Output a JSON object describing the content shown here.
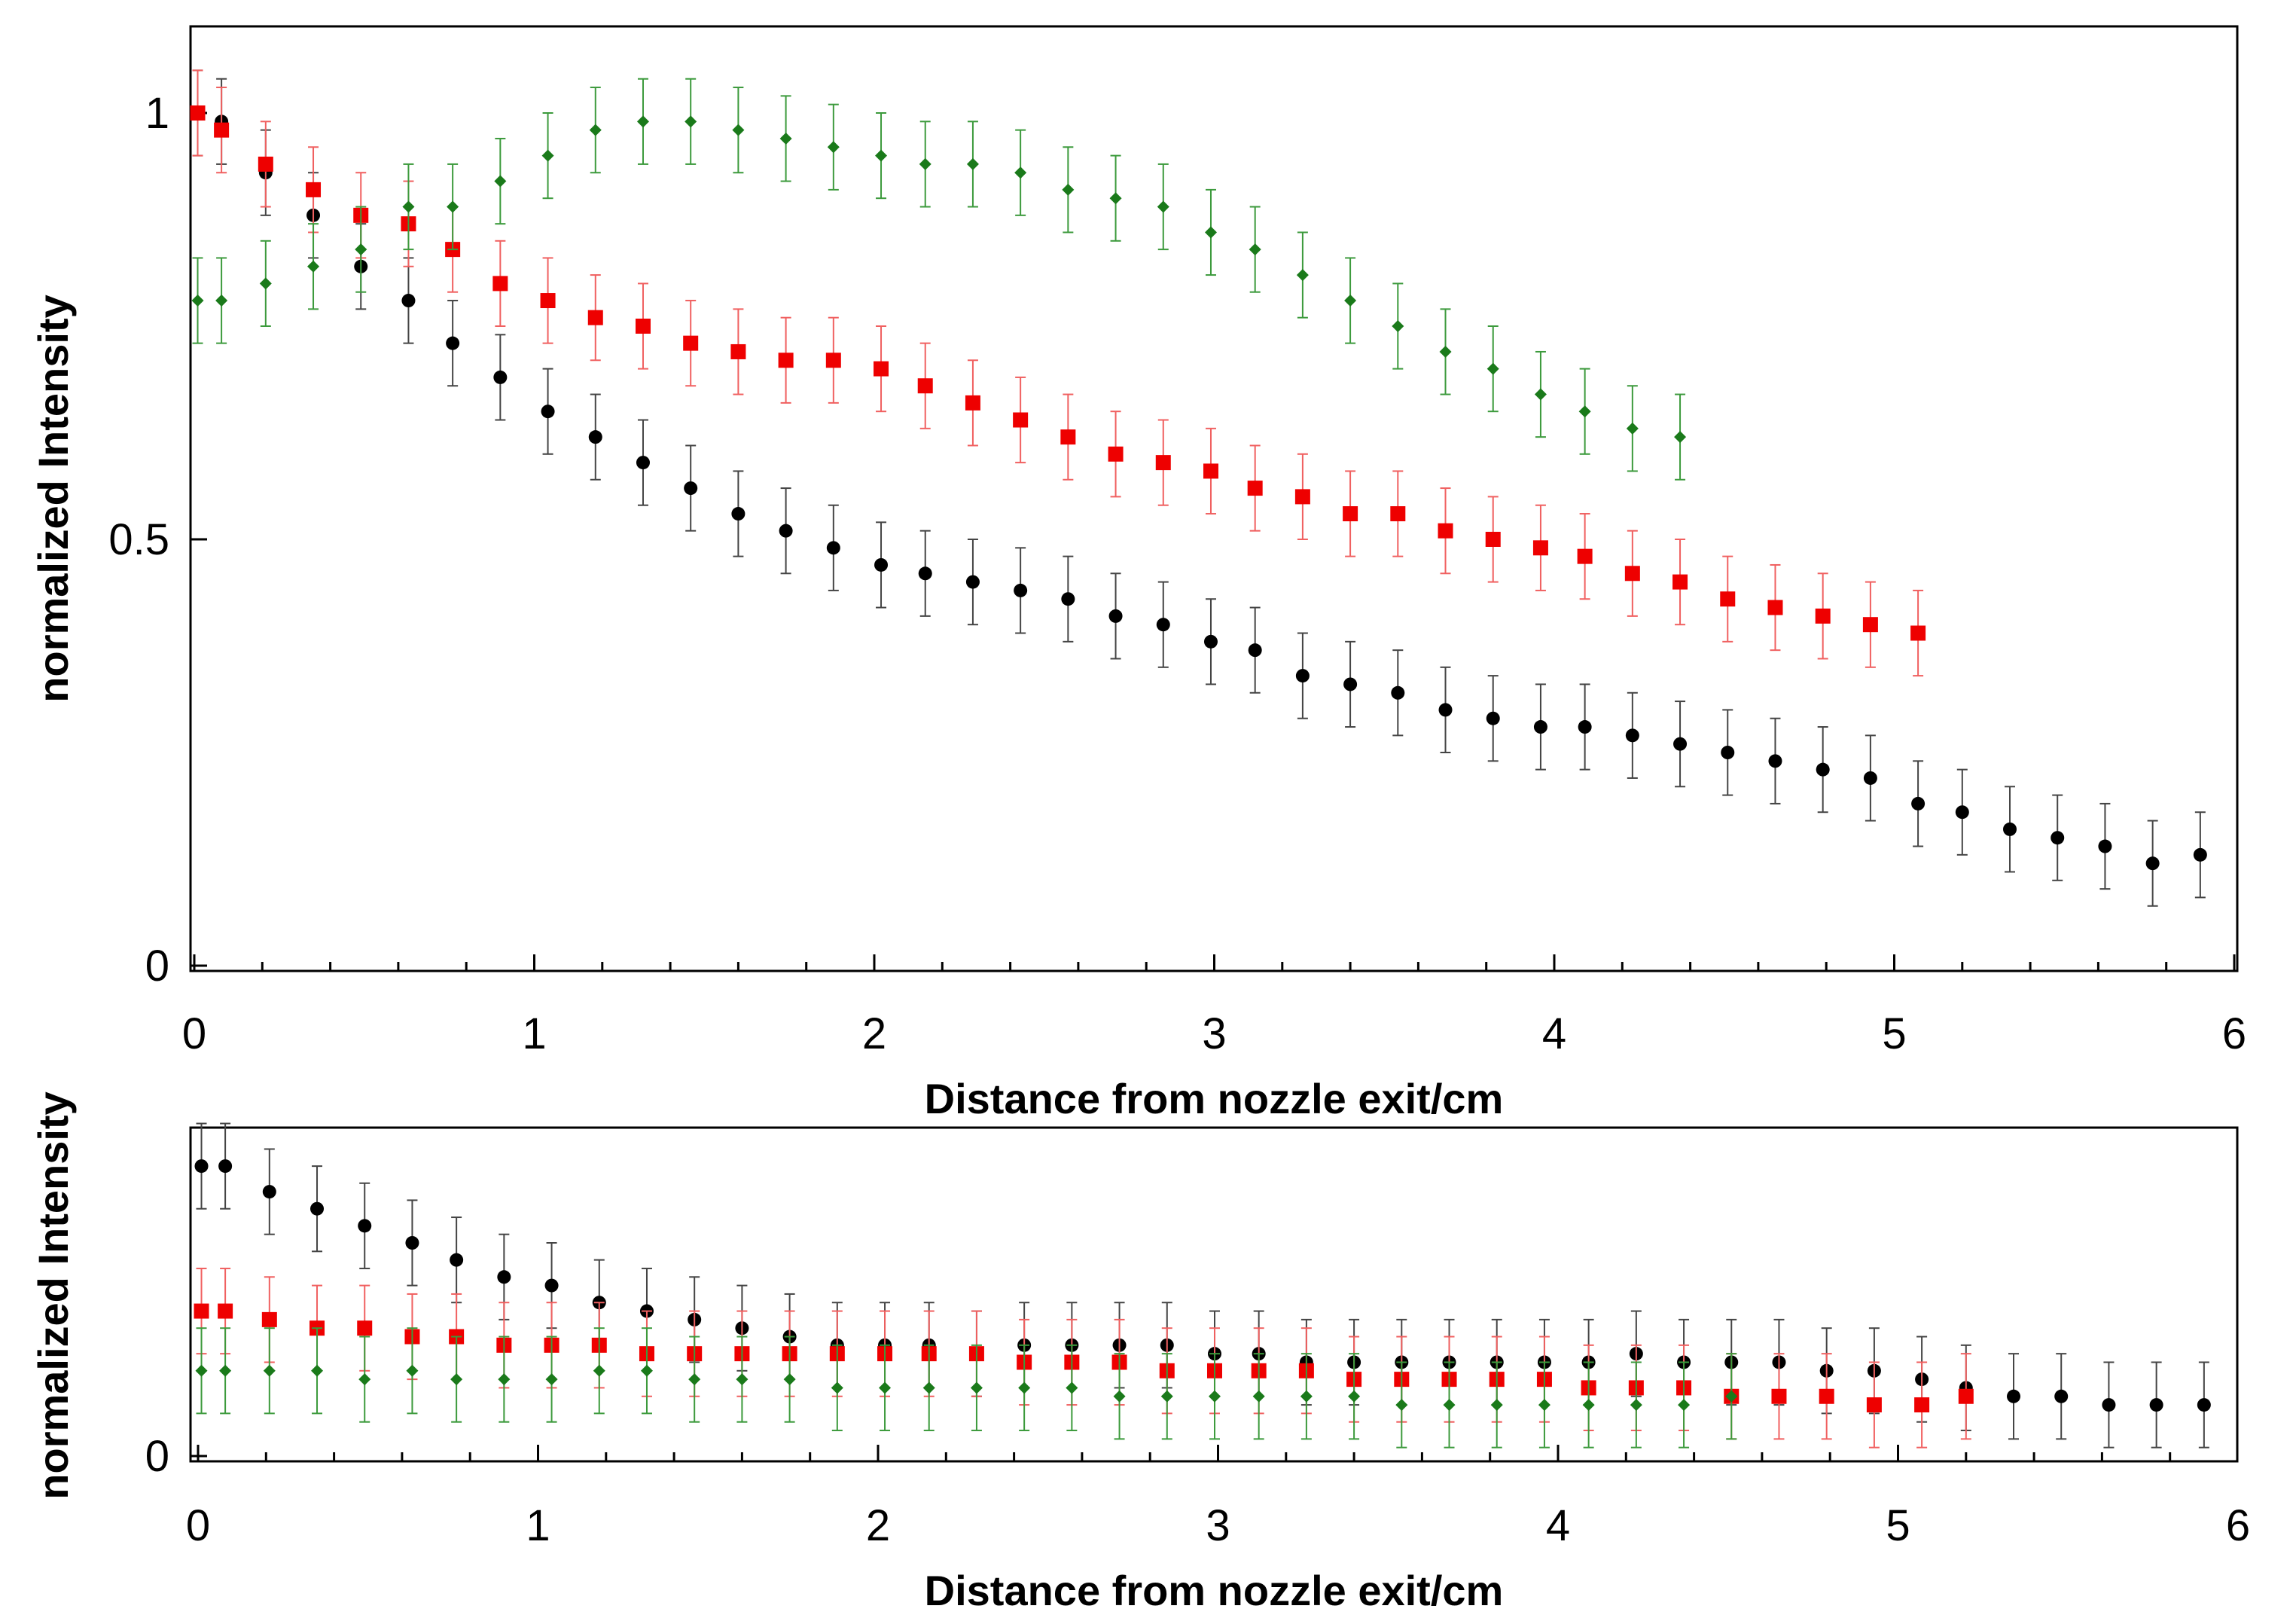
{
  "chart_data": [
    {
      "type": "scatter",
      "panel": "top",
      "title": "",
      "xlabel": "Distance from nozzle exit/cm",
      "ylabel": "normalized Intensity",
      "xlim": [
        0,
        6.1
      ],
      "ylim": [
        0,
        1.1
      ],
      "xticks": [
        0,
        1,
        2,
        3,
        4,
        5,
        6
      ],
      "yticks": [
        0,
        0.5,
        1
      ],
      "x_tick_labels": [
        "0",
        "1",
        "2",
        "3",
        "4",
        "5",
        "6"
      ],
      "y_tick_labels": [
        "0",
        "0.5",
        "1"
      ],
      "grid": false,
      "series": [
        {
          "name": "black",
          "color": "#000000",
          "marker": "circle",
          "error": 0.05,
          "x": [
            0.01,
            0.08,
            0.21,
            0.35,
            0.49,
            0.63,
            0.76,
            0.9,
            1.04,
            1.18,
            1.32,
            1.46,
            1.6,
            1.74,
            1.88,
            2.02,
            2.15,
            2.29,
            2.43,
            2.57,
            2.71,
            2.85,
            2.99,
            3.12,
            3.26,
            3.4,
            3.54,
            3.68,
            3.82,
            3.96,
            4.09,
            4.23,
            4.37,
            4.51,
            4.65,
            4.79,
            4.93,
            5.07,
            5.2,
            5.34,
            5.48,
            5.62,
            5.76,
            5.9
          ],
          "y": [
            1.0,
            0.99,
            0.93,
            0.88,
            0.82,
            0.78,
            0.73,
            0.69,
            0.65,
            0.62,
            0.59,
            0.56,
            0.53,
            0.51,
            0.49,
            0.47,
            0.46,
            0.45,
            0.44,
            0.43,
            0.41,
            0.4,
            0.38,
            0.37,
            0.34,
            0.33,
            0.32,
            0.3,
            0.29,
            0.28,
            0.28,
            0.27,
            0.26,
            0.25,
            0.24,
            0.23,
            0.22,
            0.19,
            0.18,
            0.16,
            0.15,
            0.14,
            0.12,
            0.13
          ]
        },
        {
          "name": "red",
          "color": "#ee0000",
          "marker": "square",
          "error": 0.05,
          "x": [
            0.01,
            0.08,
            0.21,
            0.35,
            0.49,
            0.63,
            0.76,
            0.9,
            1.04,
            1.18,
            1.32,
            1.46,
            1.6,
            1.74,
            1.88,
            2.02,
            2.15,
            2.29,
            2.43,
            2.57,
            2.71,
            2.85,
            2.99,
            3.12,
            3.26,
            3.4,
            3.54,
            3.68,
            3.82,
            3.96,
            4.09,
            4.23,
            4.37,
            4.51,
            4.65,
            4.79,
            4.93,
            5.07
          ],
          "y": [
            1.0,
            0.98,
            0.94,
            0.91,
            0.88,
            0.87,
            0.84,
            0.8,
            0.78,
            0.76,
            0.75,
            0.73,
            0.72,
            0.71,
            0.71,
            0.7,
            0.68,
            0.66,
            0.64,
            0.62,
            0.6,
            0.59,
            0.58,
            0.56,
            0.55,
            0.53,
            0.53,
            0.51,
            0.5,
            0.49,
            0.48,
            0.46,
            0.45,
            0.43,
            0.42,
            0.41,
            0.4,
            0.39
          ]
        },
        {
          "name": "green",
          "color": "#1a7a1a",
          "marker": "diamond",
          "error": 0.05,
          "x": [
            0.01,
            0.08,
            0.21,
            0.35,
            0.49,
            0.63,
            0.76,
            0.9,
            1.04,
            1.18,
            1.32,
            1.46,
            1.6,
            1.74,
            1.88,
            2.02,
            2.15,
            2.29,
            2.43,
            2.57,
            2.71,
            2.85,
            2.99,
            3.12,
            3.26,
            3.4,
            3.54,
            3.68,
            3.82,
            3.96,
            4.09,
            4.23,
            4.37
          ],
          "y": [
            0.78,
            0.78,
            0.8,
            0.82,
            0.84,
            0.89,
            0.89,
            0.92,
            0.95,
            0.98,
            0.99,
            0.99,
            0.98,
            0.97,
            0.96,
            0.95,
            0.94,
            0.94,
            0.93,
            0.91,
            0.9,
            0.89,
            0.86,
            0.84,
            0.81,
            0.78,
            0.75,
            0.72,
            0.7,
            0.67,
            0.65,
            0.63,
            0.62
          ]
        }
      ]
    },
    {
      "type": "scatter",
      "panel": "bottom",
      "title": "",
      "xlabel": "Distance from nozzle exit/cm",
      "ylabel": "normalized Intensity",
      "xlim": [
        0,
        6.1
      ],
      "ylim": [
        0,
        0.39
      ],
      "xticks": [
        0,
        1,
        2,
        3,
        4,
        5,
        6
      ],
      "yticks": [
        0
      ],
      "x_tick_labels": [
        "0",
        "1",
        "2",
        "3",
        "4",
        "5",
        "6"
      ],
      "y_tick_labels": [
        "0"
      ],
      "grid": false,
      "series": [
        {
          "name": "black",
          "color": "#000000",
          "marker": "circle",
          "error": 0.05,
          "x": [
            0.01,
            0.08,
            0.21,
            0.35,
            0.49,
            0.63,
            0.76,
            0.9,
            1.04,
            1.18,
            1.32,
            1.46,
            1.6,
            1.74,
            1.88,
            2.02,
            2.15,
            2.29,
            2.43,
            2.57,
            2.71,
            2.85,
            2.99,
            3.12,
            3.26,
            3.4,
            3.54,
            3.68,
            3.82,
            3.96,
            4.09,
            4.23,
            4.37,
            4.51,
            4.65,
            4.79,
            4.93,
            5.07,
            5.2,
            5.34,
            5.48,
            5.62,
            5.76,
            5.9
          ],
          "y": [
            0.34,
            0.34,
            0.31,
            0.29,
            0.27,
            0.25,
            0.23,
            0.21,
            0.2,
            0.18,
            0.17,
            0.16,
            0.15,
            0.14,
            0.13,
            0.13,
            0.13,
            0.12,
            0.13,
            0.13,
            0.13,
            0.13,
            0.12,
            0.12,
            0.11,
            0.11,
            0.11,
            0.11,
            0.11,
            0.11,
            0.11,
            0.12,
            0.11,
            0.11,
            0.11,
            0.1,
            0.1,
            0.09,
            0.08,
            0.07,
            0.07,
            0.06,
            0.06,
            0.06
          ]
        },
        {
          "name": "red",
          "color": "#ee0000",
          "marker": "square",
          "error": 0.05,
          "x": [
            0.01,
            0.08,
            0.21,
            0.35,
            0.49,
            0.63,
            0.76,
            0.9,
            1.04,
            1.18,
            1.32,
            1.46,
            1.6,
            1.74,
            1.88,
            2.02,
            2.15,
            2.29,
            2.43,
            2.57,
            2.71,
            2.85,
            2.99,
            3.12,
            3.26,
            3.4,
            3.54,
            3.68,
            3.82,
            3.96,
            4.09,
            4.23,
            4.37,
            4.51,
            4.65,
            4.79,
            4.93,
            5.07,
            5.2
          ],
          "y": [
            0.17,
            0.17,
            0.16,
            0.15,
            0.15,
            0.14,
            0.14,
            0.13,
            0.13,
            0.13,
            0.12,
            0.12,
            0.12,
            0.12,
            0.12,
            0.12,
            0.12,
            0.12,
            0.11,
            0.11,
            0.11,
            0.1,
            0.1,
            0.1,
            0.1,
            0.09,
            0.09,
            0.09,
            0.09,
            0.09,
            0.08,
            0.08,
            0.08,
            0.07,
            0.07,
            0.07,
            0.06,
            0.06,
            0.07
          ]
        },
        {
          "name": "green",
          "color": "#1a7a1a",
          "marker": "diamond",
          "error": 0.05,
          "x": [
            0.01,
            0.08,
            0.21,
            0.35,
            0.49,
            0.63,
            0.76,
            0.9,
            1.04,
            1.18,
            1.32,
            1.46,
            1.6,
            1.74,
            1.88,
            2.02,
            2.15,
            2.29,
            2.43,
            2.57,
            2.71,
            2.85,
            2.99,
            3.12,
            3.26,
            3.4,
            3.54,
            3.68,
            3.82,
            3.96,
            4.09,
            4.23,
            4.37,
            4.51
          ],
          "y": [
            0.1,
            0.1,
            0.1,
            0.1,
            0.09,
            0.1,
            0.09,
            0.09,
            0.09,
            0.1,
            0.1,
            0.09,
            0.09,
            0.09,
            0.08,
            0.08,
            0.08,
            0.08,
            0.08,
            0.08,
            0.07,
            0.07,
            0.07,
            0.07,
            0.07,
            0.07,
            0.06,
            0.06,
            0.06,
            0.06,
            0.06,
            0.06,
            0.06,
            0.07
          ]
        }
      ]
    }
  ]
}
